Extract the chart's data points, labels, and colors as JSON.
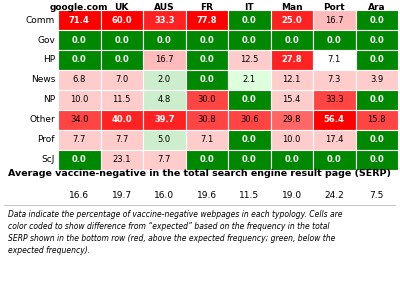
{
  "columns": [
    "google.com",
    "UK",
    "AUS",
    "FR",
    "IT",
    "Man",
    "Port",
    "Ara"
  ],
  "rows": [
    "Comm",
    "Gov",
    "HP",
    "News",
    "NP",
    "Other",
    "Prof",
    "ScJ"
  ],
  "values": [
    [
      71.4,
      60.0,
      33.3,
      77.8,
      0.0,
      25.0,
      16.7,
      0.0
    ],
    [
      0.0,
      0.0,
      0.0,
      0.0,
      0.0,
      0.0,
      0.0,
      0.0
    ],
    [
      0.0,
      0.0,
      16.7,
      0.0,
      12.5,
      27.8,
      7.1,
      0.0
    ],
    [
      6.8,
      7.0,
      2.0,
      0.0,
      2.1,
      12.1,
      7.3,
      3.9
    ],
    [
      10.0,
      11.5,
      4.8,
      30.0,
      0.0,
      15.4,
      33.3,
      0.0
    ],
    [
      34.0,
      40.0,
      39.7,
      30.8,
      30.6,
      29.8,
      56.4,
      15.8
    ],
    [
      7.7,
      7.7,
      5.0,
      7.1,
      0.0,
      10.0,
      17.4,
      0.0
    ],
    [
      0.0,
      23.1,
      7.7,
      0.0,
      0.0,
      0.0,
      0.0,
      0.0
    ]
  ],
  "averages": [
    16.6,
    19.7,
    16.0,
    19.6,
    11.5,
    19.0,
    24.2,
    7.5
  ],
  "manual_colors": [
    [
      "#ff0000",
      "#ff0000",
      "#ff2222",
      "#ff0000",
      "#008800",
      "#ff2222",
      "#ffbbbb",
      "#008800"
    ],
    [
      "#008800",
      "#008800",
      "#008800",
      "#008800",
      "#008800",
      "#008800",
      "#008800",
      "#008800"
    ],
    [
      "#008800",
      "#008800",
      "#ffbbbb",
      "#008800",
      "#ffcccc",
      "#ff2222",
      "#ffffff",
      "#008800"
    ],
    [
      "#ffcccc",
      "#ffcccc",
      "#cceecc",
      "#008800",
      "#ddffdd",
      "#ffcccc",
      "#ffcccc",
      "#ffcccc"
    ],
    [
      "#ffcccc",
      "#ffcccc",
      "#cceecc",
      "#ff4444",
      "#008800",
      "#ffcccc",
      "#ff4444",
      "#008800"
    ],
    [
      "#ff4444",
      "#ff2222",
      "#ff2222",
      "#ff4444",
      "#ff4444",
      "#ff6666",
      "#ff0000",
      "#ff4444"
    ],
    [
      "#ffcccc",
      "#ffcccc",
      "#cceecc",
      "#ffcccc",
      "#008800",
      "#ffcccc",
      "#ffcccc",
      "#008800"
    ],
    [
      "#008800",
      "#ffcccc",
      "#ffcccc",
      "#008800",
      "#008800",
      "#008800",
      "#008800",
      "#008800"
    ]
  ],
  "avg_label": "Average vaccine-negative in the total search engine result page (SERP)",
  "footnote": "Data indicate the percentage of vaccine-negative webpages in each typology. Cells are\ncolor coded to show difference from “expected” based on the frequency in the total\nSERP shown in the bottom row (red, above the expected frequency; green, below the\nexpected frequency).",
  "cell_fontsize": 6.0,
  "header_fontsize": 6.5,
  "avg_label_fontsize": 6.8,
  "avg_val_fontsize": 6.5,
  "footnote_fontsize": 5.5,
  "row_label_fontsize": 6.5
}
